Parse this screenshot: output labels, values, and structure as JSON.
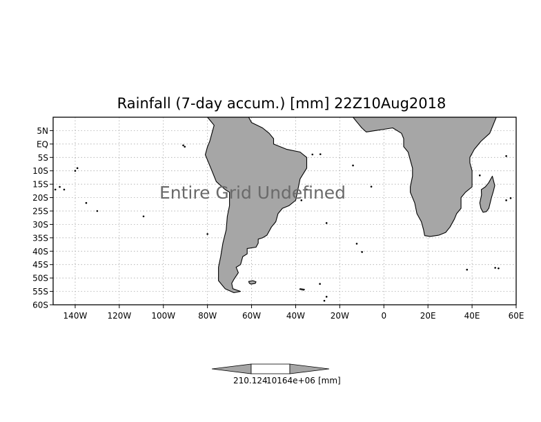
{
  "title": "Rainfall (7-day accum.) [mm] 22Z10Aug2018",
  "overlay_message": "Entire Grid Undefined",
  "map": {
    "projection": "lat-lon",
    "lon_range": [
      -150,
      60
    ],
    "lat_range": [
      -60,
      10
    ],
    "land_color": "#a6a6a6",
    "coast_color": "#000000",
    "ocean_color": "#ffffff",
    "grid": true,
    "x_ticks": [
      {
        "value": -140,
        "label": "140W"
      },
      {
        "value": -120,
        "label": "120W"
      },
      {
        "value": -100,
        "label": "100W"
      },
      {
        "value": -80,
        "label": "80W"
      },
      {
        "value": -60,
        "label": "60W"
      },
      {
        "value": -40,
        "label": "40W"
      },
      {
        "value": -20,
        "label": "20W"
      },
      {
        "value": 0,
        "label": "0"
      },
      {
        "value": 20,
        "label": "20E"
      },
      {
        "value": 40,
        "label": "40E"
      },
      {
        "value": 60,
        "label": "60E"
      }
    ],
    "y_ticks": [
      {
        "value": 5,
        "label": "5N"
      },
      {
        "value": 0,
        "label": "EQ"
      },
      {
        "value": -5,
        "label": "5S"
      },
      {
        "value": -10,
        "label": "10S"
      },
      {
        "value": -15,
        "label": "15S"
      },
      {
        "value": -20,
        "label": "20S"
      },
      {
        "value": -25,
        "label": "25S"
      },
      {
        "value": -30,
        "label": "30S"
      },
      {
        "value": -35,
        "label": "35S"
      },
      {
        "value": -40,
        "label": "40S"
      },
      {
        "value": -45,
        "label": "45S"
      },
      {
        "value": -50,
        "label": "50S"
      },
      {
        "value": -55,
        "label": "55S"
      },
      {
        "value": -60,
        "label": "60S"
      }
    ],
    "south_america": [
      [
        -80,
        10
      ],
      [
        -75,
        11.5
      ],
      [
        -68,
        12
      ],
      [
        -62,
        11
      ],
      [
        -60,
        8
      ],
      [
        -55,
        6
      ],
      [
        -52,
        4
      ],
      [
        -50,
        2
      ],
      [
        -50,
        0
      ],
      [
        -44,
        -2
      ],
      [
        -38,
        -3
      ],
      [
        -35,
        -5
      ],
      [
        -35,
        -9
      ],
      [
        -38,
        -13
      ],
      [
        -39,
        -17
      ],
      [
        -40,
        -21
      ],
      [
        -43,
        -23
      ],
      [
        -46,
        -24
      ],
      [
        -48,
        -26
      ],
      [
        -49,
        -29
      ],
      [
        -51,
        -31
      ],
      [
        -53,
        -34
      ],
      [
        -55,
        -35
      ],
      [
        -57,
        -35.5
      ],
      [
        -57,
        -37
      ],
      [
        -58,
        -38.5
      ],
      [
        -62,
        -39
      ],
      [
        -62,
        -41
      ],
      [
        -64,
        -42
      ],
      [
        -65,
        -45
      ],
      [
        -67,
        -46
      ],
      [
        -66,
        -48
      ],
      [
        -68,
        -50.5
      ],
      [
        -69,
        -52
      ],
      [
        -68.5,
        -54
      ],
      [
        -65,
        -55
      ],
      [
        -68,
        -55.5
      ],
      [
        -72,
        -54
      ],
      [
        -75,
        -51
      ],
      [
        -75,
        -46
      ],
      [
        -74,
        -42
      ],
      [
        -73,
        -37
      ],
      [
        -71.5,
        -32
      ],
      [
        -71,
        -27
      ],
      [
        -70,
        -23
      ],
      [
        -70,
        -18
      ],
      [
        -72,
        -17
      ],
      [
        -76,
        -14
      ],
      [
        -78,
        -10
      ],
      [
        -80,
        -6
      ],
      [
        -81,
        -4
      ],
      [
        -80,
        -1
      ],
      [
        -79,
        1
      ],
      [
        -78,
        4
      ],
      [
        -77,
        7
      ],
      [
        -79,
        9
      ]
    ],
    "africa": [
      [
        -17,
        15
      ],
      [
        -17,
        12
      ],
      [
        -14,
        10
      ],
      [
        -12,
        8
      ],
      [
        -10,
        6
      ],
      [
        -8,
        4.5
      ],
      [
        -4,
        5
      ],
      [
        0,
        5.5
      ],
      [
        4,
        6
      ],
      [
        8,
        4
      ],
      [
        9,
        2
      ],
      [
        9,
        -1
      ],
      [
        11,
        -3
      ],
      [
        12,
        -6
      ],
      [
        13,
        -9
      ],
      [
        13,
        -12
      ],
      [
        12,
        -16
      ],
      [
        12,
        -18
      ],
      [
        14,
        -22
      ],
      [
        15,
        -26
      ],
      [
        17,
        -29
      ],
      [
        18,
        -32
      ],
      [
        18.5,
        -34.2
      ],
      [
        21,
        -34.5
      ],
      [
        25,
        -34
      ],
      [
        28,
        -33
      ],
      [
        30,
        -31
      ],
      [
        32,
        -28
      ],
      [
        33,
        -26
      ],
      [
        35,
        -24
      ],
      [
        35,
        -22
      ],
      [
        35,
        -20
      ],
      [
        37,
        -18
      ],
      [
        40,
        -16
      ],
      [
        40,
        -13
      ],
      [
        40,
        -10
      ],
      [
        39,
        -7
      ],
      [
        39,
        -5
      ],
      [
        41,
        -2
      ],
      [
        44,
        1
      ],
      [
        48,
        4
      ],
      [
        51,
        10
      ],
      [
        51,
        12
      ],
      [
        44,
        11
      ],
      [
        43,
        13
      ],
      [
        40,
        16
      ]
    ],
    "madagascar": [
      [
        49.2,
        -12
      ],
      [
        50.3,
        -15.5
      ],
      [
        49.7,
        -17.5
      ],
      [
        48.8,
        -20
      ],
      [
        47.6,
        -24
      ],
      [
        46.5,
        -25.2
      ],
      [
        45,
        -25.5
      ],
      [
        44,
        -24
      ],
      [
        43.5,
        -22
      ],
      [
        44.3,
        -19
      ],
      [
        44.2,
        -17
      ],
      [
        46,
        -16
      ],
      [
        47.5,
        -14.5
      ]
    ],
    "falklands": [
      [
        -61.3,
        -51.3
      ],
      [
        -59.5,
        -51
      ],
      [
        -58,
        -51.4
      ],
      [
        -58.3,
        -52
      ],
      [
        -60.2,
        -52.3
      ],
      [
        -61,
        -52
      ]
    ],
    "south_georgia": [
      [
        -38,
        -54
      ],
      [
        -36,
        -54.2
      ],
      [
        -36.3,
        -54.6
      ],
      [
        -38.2,
        -54.2
      ]
    ]
  },
  "colorbar": {
    "label_text": "210.124",
    "label_text_overlap": "10164e+06",
    "unit_text": "[mm]",
    "color": "#a6a6a6"
  }
}
